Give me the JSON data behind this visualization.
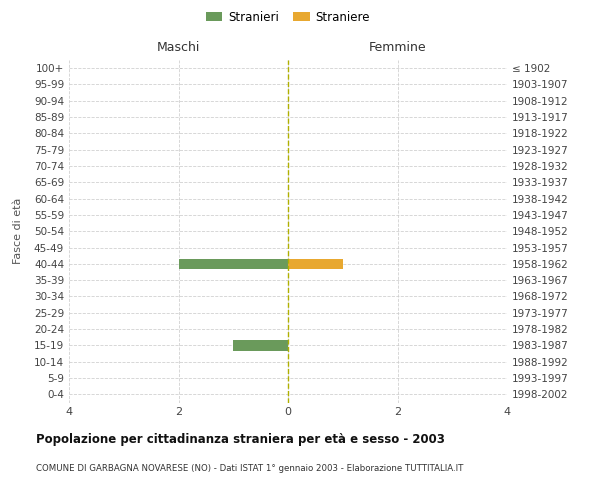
{
  "age_groups": [
    "100+",
    "95-99",
    "90-94",
    "85-89",
    "80-84",
    "75-79",
    "70-74",
    "65-69",
    "60-64",
    "55-59",
    "50-54",
    "45-49",
    "40-44",
    "35-39",
    "30-34",
    "25-29",
    "20-24",
    "15-19",
    "10-14",
    "5-9",
    "0-4"
  ],
  "birth_years": [
    "≤ 1902",
    "1903-1907",
    "1908-1912",
    "1913-1917",
    "1918-1922",
    "1923-1927",
    "1928-1932",
    "1933-1937",
    "1938-1942",
    "1943-1947",
    "1948-1952",
    "1953-1957",
    "1958-1962",
    "1963-1967",
    "1968-1972",
    "1973-1977",
    "1978-1982",
    "1983-1987",
    "1988-1992",
    "1993-1997",
    "1998-2002"
  ],
  "males": [
    0,
    0,
    0,
    0,
    0,
    0,
    0,
    0,
    0,
    0,
    0,
    0,
    2,
    0,
    0,
    0,
    0,
    1,
    0,
    0,
    0
  ],
  "females": [
    0,
    0,
    0,
    0,
    0,
    0,
    0,
    0,
    0,
    0,
    0,
    0,
    1,
    0,
    0,
    0,
    0,
    0,
    0,
    0,
    0
  ],
  "male_color": "#6a9a5b",
  "female_color": "#e8a830",
  "title_bold": "Popolazione per cittadinanza straniera per età e sesso - 2003",
  "subtitle": "COMUNE DI GARBAGNA NOVARESE (NO) - Dati ISTAT 1° gennaio 2003 - Elaborazione TUTTITALIA.IT",
  "ylabel_left": "Fasce di età",
  "label_maschi": "Maschi",
  "label_femmine": "Femmine",
  "legend_maschi": "Stranieri",
  "legend_femmine": "Straniere",
  "xlim": 4,
  "background_color": "#ffffff",
  "grid_color": "#cccccc",
  "center_line_color": "#b0b000"
}
